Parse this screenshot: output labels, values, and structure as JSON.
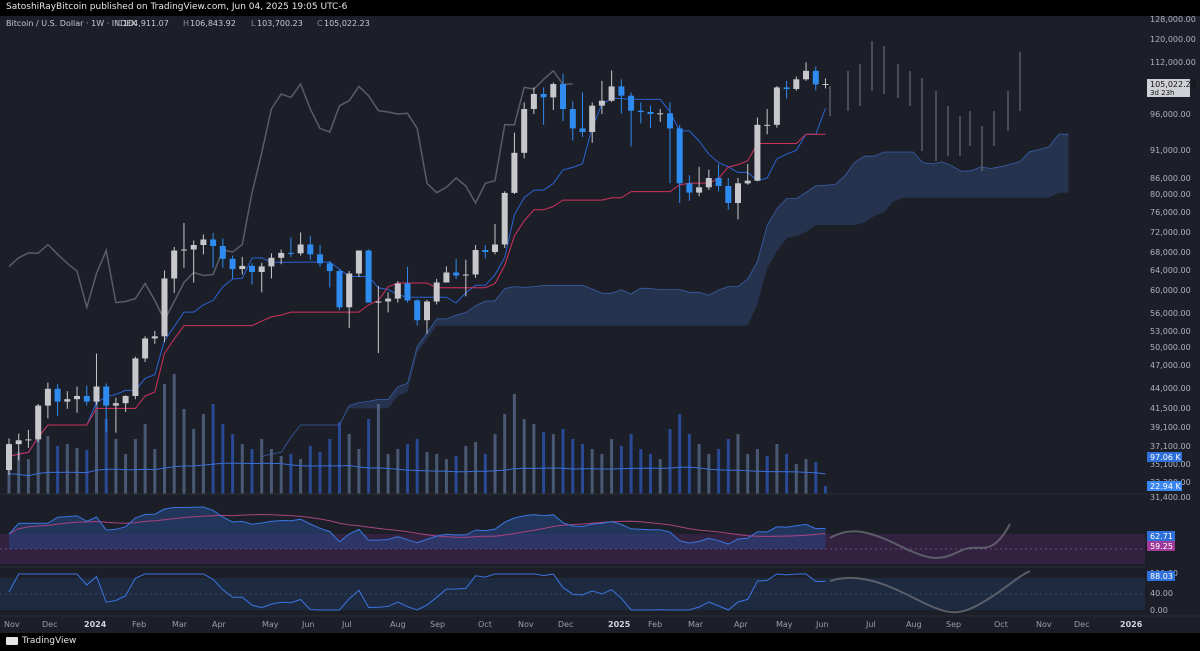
{
  "header": {
    "publisher_line": "SatoshiRayBitcoin published on TradingView.com, Jun 04, 2025 19:05 UTC-6"
  },
  "legend": {
    "symbol": "Bitcoin / U.S. Dollar · 1W · INDEX",
    "open_label": "O",
    "open": "104,911.07",
    "high_label": "H",
    "high": "106,843.92",
    "low_label": "L",
    "low": "103,700.23",
    "close_label": "C",
    "close": "105,022.23"
  },
  "footer": {
    "brand": "TradingView"
  },
  "colors": {
    "bull": "#c8c8cc",
    "bear": "#2e8bf0",
    "cloud": "#2e4470",
    "base_line": "#d1325c",
    "conv_line": "#2a63d4",
    "lagging": "#5a5d66",
    "background": "#1c1f28"
  },
  "chart_data": {
    "type": "candlestick",
    "price_axis": {
      "ticks": [
        "128,000.00",
        "120,000.00",
        "112,000.00",
        "105,022.23",
        "96,000.00",
        "91,000.00",
        "86,000.00",
        "80,000.00",
        "76,000.00",
        "72,000.00",
        "68,000.00",
        "64,000.00",
        "60,000.00",
        "56,000.00",
        "53,000.00",
        "50,000.00",
        "47,000.00",
        "44,000.00",
        "41,500.00",
        "39,100.00",
        "37,100.00",
        "35,100.00",
        "33,300.00",
        "31,400.00"
      ],
      "last_price": "105,022.23",
      "countdown": "3d 23h",
      "volume_ma_label": "97.06 K",
      "volume_label": "22.94 K"
    },
    "time_axis": [
      "Nov",
      "Dec",
      "2024",
      "Feb",
      "Mar",
      "Apr",
      "May",
      "Jun",
      "Jul",
      "Aug",
      "Sep",
      "Oct",
      "Nov",
      "Dec",
      "2025",
      "Feb",
      "Mar",
      "Apr",
      "May",
      "Jun",
      "Jul",
      "Aug",
      "Sep",
      "Oct",
      "Nov",
      "Dec",
      "2026"
    ],
    "candles": [
      {
        "o": 34500,
        "h": 37900,
        "l": 34000,
        "c": 37300
      },
      {
        "o": 37300,
        "h": 38400,
        "l": 35500,
        "c": 37700
      },
      {
        "o": 37700,
        "h": 38800,
        "l": 36900,
        "c": 37800
      },
      {
        "o": 37800,
        "h": 42000,
        "l": 37500,
        "c": 41800
      },
      {
        "o": 41800,
        "h": 44700,
        "l": 40200,
        "c": 43900
      },
      {
        "o": 43900,
        "h": 44500,
        "l": 40500,
        "c": 42300
      },
      {
        "o": 42300,
        "h": 43600,
        "l": 41400,
        "c": 42600
      },
      {
        "o": 42600,
        "h": 44200,
        "l": 40900,
        "c": 43000
      },
      {
        "o": 43000,
        "h": 44300,
        "l": 41800,
        "c": 42300
      },
      {
        "o": 42300,
        "h": 48900,
        "l": 41900,
        "c": 44200
      },
      {
        "o": 44200,
        "h": 44600,
        "l": 38600,
        "c": 41800
      },
      {
        "o": 41800,
        "h": 42800,
        "l": 38500,
        "c": 42100
      },
      {
        "o": 42100,
        "h": 43100,
        "l": 41000,
        "c": 43000
      },
      {
        "o": 43000,
        "h": 48400,
        "l": 42600,
        "c": 48100
      },
      {
        "o": 48100,
        "h": 52000,
        "l": 47500,
        "c": 51600
      },
      {
        "o": 51600,
        "h": 53000,
        "l": 50600,
        "c": 52000
      },
      {
        "o": 52000,
        "h": 63900,
        "l": 50900,
        "c": 62300
      },
      {
        "o": 62300,
        "h": 69000,
        "l": 59500,
        "c": 68300
      },
      {
        "o": 68300,
        "h": 73800,
        "l": 64500,
        "c": 68500
      },
      {
        "o": 68500,
        "h": 70300,
        "l": 61500,
        "c": 69400
      },
      {
        "o": 69400,
        "h": 71500,
        "l": 67500,
        "c": 70500
      },
      {
        "o": 70500,
        "h": 71800,
        "l": 64500,
        "c": 69200
      },
      {
        "o": 69200,
        "h": 70700,
        "l": 64500,
        "c": 66500
      },
      {
        "o": 66500,
        "h": 67200,
        "l": 62300,
        "c": 64200
      },
      {
        "o": 64200,
        "h": 66900,
        "l": 63100,
        "c": 64900
      },
      {
        "o": 64900,
        "h": 65500,
        "l": 61100,
        "c": 63600
      },
      {
        "o": 63600,
        "h": 65600,
        "l": 59600,
        "c": 64800
      },
      {
        "o": 64800,
        "h": 67700,
        "l": 62300,
        "c": 66700
      },
      {
        "o": 66700,
        "h": 68500,
        "l": 65300,
        "c": 67800
      },
      {
        "o": 67800,
        "h": 70900,
        "l": 66900,
        "c": 67700
      },
      {
        "o": 67700,
        "h": 71900,
        "l": 67200,
        "c": 69500
      },
      {
        "o": 69500,
        "h": 71200,
        "l": 66300,
        "c": 67500
      },
      {
        "o": 67500,
        "h": 69400,
        "l": 64700,
        "c": 65500
      },
      {
        "o": 65500,
        "h": 66000,
        "l": 60500,
        "c": 63800
      },
      {
        "o": 63800,
        "h": 64100,
        "l": 56500,
        "c": 57000
      },
      {
        "o": 57000,
        "h": 63800,
        "l": 53500,
        "c": 63300
      },
      {
        "o": 63300,
        "h": 68300,
        "l": 62600,
        "c": 68300
      },
      {
        "o": 68300,
        "h": 68500,
        "l": 57800,
        "c": 57800
      },
      {
        "o": 57800,
        "h": 60800,
        "l": 49000,
        "c": 58000
      },
      {
        "o": 58000,
        "h": 59600,
        "l": 56100,
        "c": 58500
      },
      {
        "o": 58500,
        "h": 61800,
        "l": 57800,
        "c": 61300
      },
      {
        "o": 61300,
        "h": 64700,
        "l": 57800,
        "c": 58200
      },
      {
        "o": 58200,
        "h": 58400,
        "l": 53900,
        "c": 54800
      },
      {
        "o": 54800,
        "h": 58300,
        "l": 52500,
        "c": 58000
      },
      {
        "o": 58000,
        "h": 62200,
        "l": 57500,
        "c": 61500
      },
      {
        "o": 61500,
        "h": 64800,
        "l": 62200,
        "c": 63500
      },
      {
        "o": 63500,
        "h": 66500,
        "l": 62200,
        "c": 62900
      },
      {
        "o": 62900,
        "h": 66300,
        "l": 58900,
        "c": 63100
      },
      {
        "o": 63100,
        "h": 69400,
        "l": 62400,
        "c": 68400
      },
      {
        "o": 68400,
        "h": 69400,
        "l": 66600,
        "c": 68000
      },
      {
        "o": 68000,
        "h": 73600,
        "l": 67500,
        "c": 69500
      },
      {
        "o": 69500,
        "h": 81000,
        "l": 68800,
        "c": 80400
      },
      {
        "o": 80400,
        "h": 93400,
        "l": 80000,
        "c": 90500
      },
      {
        "o": 90500,
        "h": 99500,
        "l": 89500,
        "c": 97500
      },
      {
        "o": 97500,
        "h": 104000,
        "l": 96000,
        "c": 102000
      },
      {
        "o": 102000,
        "h": 104000,
        "l": 94500,
        "c": 101000
      },
      {
        "o": 101000,
        "h": 105500,
        "l": 97200,
        "c": 105000
      },
      {
        "o": 105000,
        "h": 108300,
        "l": 95000,
        "c": 97500
      },
      {
        "o": 97500,
        "h": 99800,
        "l": 92300,
        "c": 94000
      },
      {
        "o": 94000,
        "h": 102500,
        "l": 92800,
        "c": 93500
      },
      {
        "o": 93500,
        "h": 99500,
        "l": 92000,
        "c": 98500
      },
      {
        "o": 98500,
        "h": 106000,
        "l": 96000,
        "c": 100000
      },
      {
        "o": 100000,
        "h": 109300,
        "l": 99600,
        "c": 104300
      },
      {
        "o": 104300,
        "h": 106500,
        "l": 96100,
        "c": 101500
      },
      {
        "o": 101500,
        "h": 102500,
        "l": 91500,
        "c": 97000
      },
      {
        "o": 97000,
        "h": 99500,
        "l": 94700,
        "c": 96600
      },
      {
        "o": 96600,
        "h": 98500,
        "l": 94100,
        "c": 96000
      },
      {
        "o": 96000,
        "h": 97500,
        "l": 94900,
        "c": 96200
      },
      {
        "o": 96200,
        "h": 99500,
        "l": 84000,
        "c": 94000
      },
      {
        "o": 94000,
        "h": 94500,
        "l": 78000,
        "c": 84000
      },
      {
        "o": 84000,
        "h": 86500,
        "l": 78500,
        "c": 80500
      },
      {
        "o": 80500,
        "h": 88000,
        "l": 79500,
        "c": 82500
      },
      {
        "o": 82500,
        "h": 87500,
        "l": 81500,
        "c": 86000
      },
      {
        "o": 86000,
        "h": 88500,
        "l": 81000,
        "c": 83000
      },
      {
        "o": 83000,
        "h": 86000,
        "l": 76500,
        "c": 78000
      },
      {
        "o": 78000,
        "h": 86000,
        "l": 74500,
        "c": 84000
      },
      {
        "o": 84000,
        "h": 88500,
        "l": 83500,
        "c": 85000
      },
      {
        "o": 85000,
        "h": 95500,
        "l": 84800,
        "c": 94500
      },
      {
        "o": 94500,
        "h": 97500,
        "l": 93200,
        "c": 94500
      },
      {
        "o": 94500,
        "h": 104400,
        "l": 94100,
        "c": 104000
      },
      {
        "o": 104000,
        "h": 106000,
        "l": 100700,
        "c": 103500
      },
      {
        "o": 103500,
        "h": 107400,
        "l": 103000,
        "c": 106500
      },
      {
        "o": 106500,
        "h": 111900,
        "l": 106000,
        "c": 109200
      },
      {
        "o": 109200,
        "h": 110600,
        "l": 103100,
        "c": 104900
      },
      {
        "o": 104900,
        "h": 106800,
        "l": 103700,
        "c": 105022
      }
    ],
    "volume": [
      {
        "v": 45,
        "up": true
      },
      {
        "v": 42,
        "up": true
      },
      {
        "v": 35,
        "up": true
      },
      {
        "v": 60,
        "up": true
      },
      {
        "v": 58,
        "up": true
      },
      {
        "v": 48,
        "up": false
      },
      {
        "v": 50,
        "up": true
      },
      {
        "v": 46,
        "up": true
      },
      {
        "v": 44,
        "up": false
      },
      {
        "v": 100,
        "up": true
      },
      {
        "v": 75,
        "up": false
      },
      {
        "v": 55,
        "up": true
      },
      {
        "v": 40,
        "up": true
      },
      {
        "v": 55,
        "up": true
      },
      {
        "v": 70,
        "up": true
      },
      {
        "v": 45,
        "up": true
      },
      {
        "v": 110,
        "up": true
      },
      {
        "v": 120,
        "up": true
      },
      {
        "v": 85,
        "up": true
      },
      {
        "v": 65,
        "up": true
      },
      {
        "v": 80,
        "up": true
      },
      {
        "v": 90,
        "up": false
      },
      {
        "v": 70,
        "up": false
      },
      {
        "v": 60,
        "up": false
      },
      {
        "v": 50,
        "up": true
      },
      {
        "v": 45,
        "up": false
      },
      {
        "v": 55,
        "up": true
      },
      {
        "v": 45,
        "up": true
      },
      {
        "v": 38,
        "up": true
      },
      {
        "v": 40,
        "up": false
      },
      {
        "v": 35,
        "up": true
      },
      {
        "v": 48,
        "up": false
      },
      {
        "v": 42,
        "up": false
      },
      {
        "v": 55,
        "up": false
      },
      {
        "v": 72,
        "up": false
      },
      {
        "v": 60,
        "up": true
      },
      {
        "v": 45,
        "up": true
      },
      {
        "v": 75,
        "up": false
      },
      {
        "v": 90,
        "up": true
      },
      {
        "v": 40,
        "up": true
      },
      {
        "v": 45,
        "up": true
      },
      {
        "v": 50,
        "up": false
      },
      {
        "v": 55,
        "up": false
      },
      {
        "v": 42,
        "up": true
      },
      {
        "v": 40,
        "up": true
      },
      {
        "v": 35,
        "up": true
      },
      {
        "v": 38,
        "up": false
      },
      {
        "v": 48,
        "up": true
      },
      {
        "v": 52,
        "up": true
      },
      {
        "v": 40,
        "up": false
      },
      {
        "v": 60,
        "up": true
      },
      {
        "v": 80,
        "up": true
      },
      {
        "v": 100,
        "up": true
      },
      {
        "v": 75,
        "up": true
      },
      {
        "v": 70,
        "up": true
      },
      {
        "v": 62,
        "up": false
      },
      {
        "v": 60,
        "up": true
      },
      {
        "v": 65,
        "up": false
      },
      {
        "v": 55,
        "up": false
      },
      {
        "v": 50,
        "up": false
      },
      {
        "v": 45,
        "up": true
      },
      {
        "v": 40,
        "up": true
      },
      {
        "v": 55,
        "up": true
      },
      {
        "v": 48,
        "up": false
      },
      {
        "v": 60,
        "up": false
      },
      {
        "v": 45,
        "up": false
      },
      {
        "v": 40,
        "up": false
      },
      {
        "v": 35,
        "up": true
      },
      {
        "v": 65,
        "up": false
      },
      {
        "v": 80,
        "up": false
      },
      {
        "v": 60,
        "up": false
      },
      {
        "v": 50,
        "up": true
      },
      {
        "v": 40,
        "up": true
      },
      {
        "v": 45,
        "up": false
      },
      {
        "v": 55,
        "up": false
      },
      {
        "v": 60,
        "up": true
      },
      {
        "v": 40,
        "up": true
      },
      {
        "v": 45,
        "up": true
      },
      {
        "v": 38,
        "up": false
      },
      {
        "v": 50,
        "up": true
      },
      {
        "v": 40,
        "up": false
      },
      {
        "v": 30,
        "up": true
      },
      {
        "v": 35,
        "up": true
      },
      {
        "v": 32,
        "up": false
      },
      {
        "v": 8,
        "up": false
      }
    ],
    "rsi": {
      "value_label": "62.71",
      "ma_label": "59.25"
    },
    "stoch": {
      "value_label": "88.03",
      "axis_labels": [
        "100.00",
        "40.00",
        "0.00"
      ]
    }
  }
}
